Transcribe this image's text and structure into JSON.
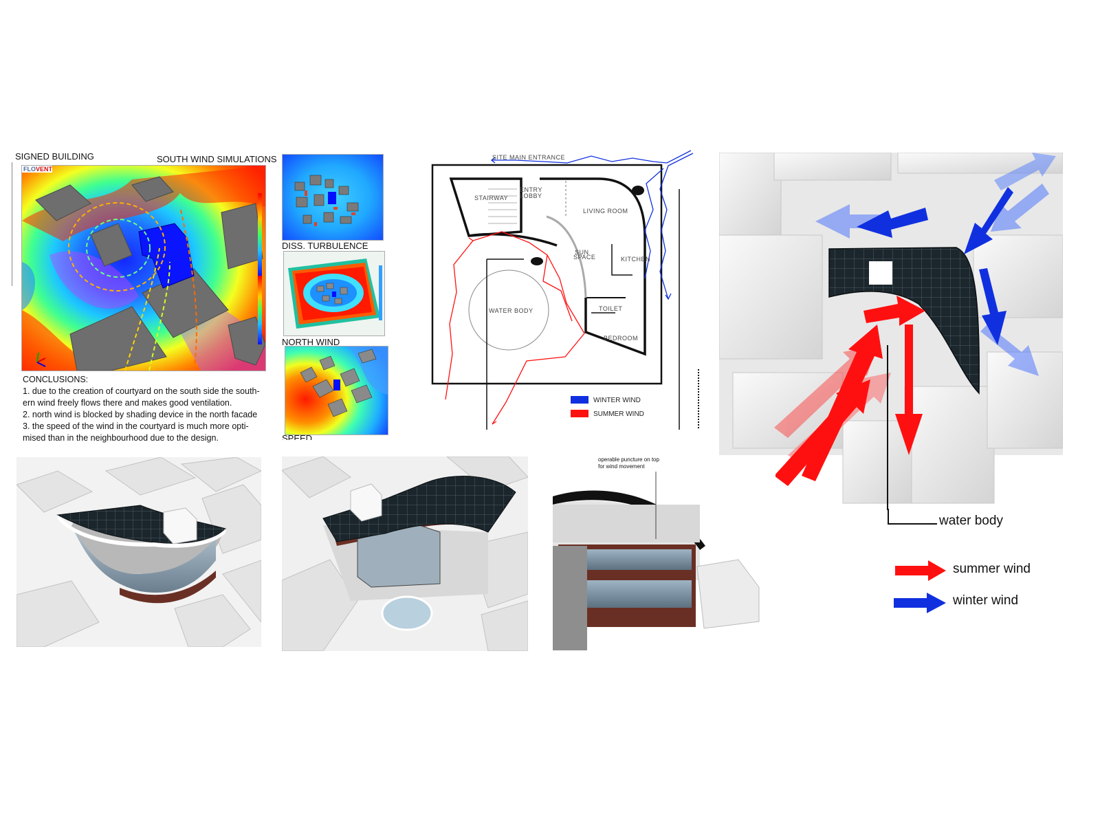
{
  "main_sim": {
    "title_left": "SIGNED BUILDING",
    "title_right": "SOUTH WIND SIMULATIONS",
    "logo_flo": "FLO",
    "logo_vent": "VENT"
  },
  "small_sims": [
    {
      "label": "DISS. TURBULENCE"
    },
    {
      "label": "NORTH WIND"
    },
    {
      "label": "SPEED"
    }
  ],
  "conclusions": {
    "heading": "CONCLUSIONS:",
    "items": [
      "1. due to the creation of courtyard on the south side the south-",
      "ern wind freely flows there and makes good ventilation.",
      "2. north wind is blocked by shading device in the north facade",
      "3. the speed of the wind in the courtyard is much more opti-",
      "mised than in the neighbourhood due to the design."
    ]
  },
  "plan": {
    "site_entrance": "SITE MAIN ENTRANCE",
    "stairway": "STAIRWAY",
    "entry_lobby_1": "ENTRY",
    "entry_lobby_2": "LOBBY",
    "living_room": "LIVING ROOM",
    "sun_space_1": "SUN",
    "sun_space_2": "SPACE",
    "kitchen": "KITCHEN",
    "water_body": "WATER BODY",
    "toilet": "TOILET",
    "bedroom": "BEDROOM",
    "legend_winter": "WINTER WIND",
    "legend_summer": "SUMMER WIND"
  },
  "diagram3d": {
    "water_body_label": "water body",
    "legend_summer": "summer wind",
    "legend_winter": "winter wind"
  },
  "renders": {
    "annotation_line1": "operable puncture on top",
    "annotation_line2": "for wind movement"
  },
  "colors": {
    "summer_wind": "#ff1010",
    "winter_wind": "#1030e0",
    "roof_panel": "#1d2a30",
    "brick": "#6a2f24"
  }
}
